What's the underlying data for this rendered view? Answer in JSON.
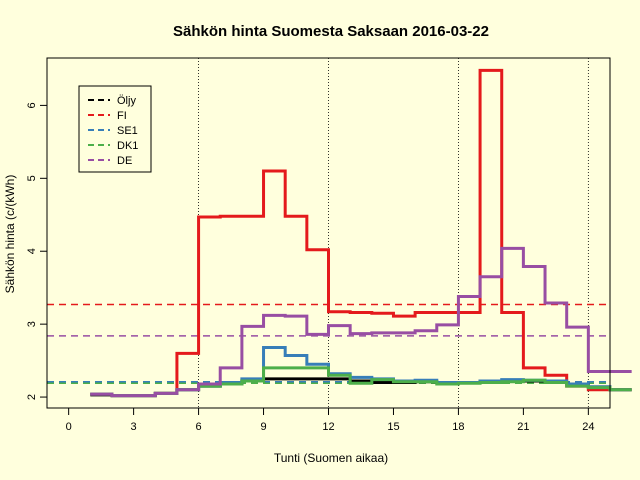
{
  "chart_data": {
    "type": "line",
    "title": "Sähkön hinta Suomesta Saksaan 2016-03-22",
    "xlabel": "Tunti (Suomen aikaa)",
    "ylabel": "Sähkön hinta (c/(kWh)",
    "xlim": [
      -1,
      25
    ],
    "ylim": [
      1.85,
      6.65
    ],
    "x_ticks": [
      0,
      3,
      6,
      9,
      12,
      15,
      18,
      21,
      24
    ],
    "y_ticks": [
      2,
      3,
      4,
      5,
      6
    ],
    "vlines": [
      6,
      12,
      18,
      24
    ],
    "legend_position": "top-left",
    "series": [
      {
        "name": "Öljy",
        "color": "#000000",
        "values": [
          2.03,
          2.02,
          2.02,
          2.05,
          2.1,
          2.15,
          2.18,
          2.22,
          2.25,
          2.25,
          2.25,
          2.25,
          2.22,
          2.2,
          2.2,
          2.21,
          2.2,
          2.2,
          2.22,
          2.22,
          2.22,
          2.2,
          2.18,
          2.14,
          2.1
        ]
      },
      {
        "name": "FI",
        "color": "#E41A1C",
        "values": [
          2.04,
          2.02,
          2.02,
          2.05,
          2.6,
          4.47,
          4.48,
          4.48,
          5.1,
          4.48,
          4.02,
          3.17,
          3.16,
          3.15,
          3.11,
          3.16,
          3.16,
          3.16,
          6.48,
          3.16,
          2.4,
          2.3,
          2.15,
          2.1,
          2.1
        ]
      },
      {
        "name": "SE1",
        "color": "#377EB8",
        "values": [
          2.04,
          2.02,
          2.02,
          2.05,
          2.1,
          2.15,
          2.2,
          2.25,
          2.68,
          2.57,
          2.45,
          2.32,
          2.27,
          2.25,
          2.22,
          2.23,
          2.2,
          2.2,
          2.22,
          2.24,
          2.23,
          2.22,
          2.18,
          2.14,
          2.1
        ]
      },
      {
        "name": "DK1",
        "color": "#4DAF4A",
        "values": [
          2.04,
          2.02,
          2.02,
          2.05,
          2.1,
          2.15,
          2.18,
          2.22,
          2.4,
          2.4,
          2.4,
          2.3,
          2.19,
          2.24,
          2.21,
          2.21,
          2.18,
          2.19,
          2.2,
          2.21,
          2.23,
          2.2,
          2.15,
          2.13,
          2.1
        ]
      },
      {
        "name": "DE",
        "color": "#984EA3",
        "values": [
          2.04,
          2.02,
          2.02,
          2.05,
          2.1,
          2.18,
          2.4,
          2.97,
          3.12,
          3.11,
          2.86,
          2.98,
          2.87,
          2.88,
          2.88,
          2.91,
          2.99,
          3.38,
          3.65,
          4.04,
          3.79,
          3.29,
          2.96,
          2.35,
          2.35
        ]
      }
    ],
    "hlines": [
      {
        "name": "FI",
        "value": 3.27,
        "color": "#E41A1C"
      },
      {
        "name": "DE",
        "value": 2.84,
        "color": "#984EA3"
      },
      {
        "name": "SE1",
        "value": 2.21,
        "color": "#377EB8"
      },
      {
        "name": "DK1",
        "value": 2.19,
        "color": "#4DAF4A"
      }
    ]
  }
}
